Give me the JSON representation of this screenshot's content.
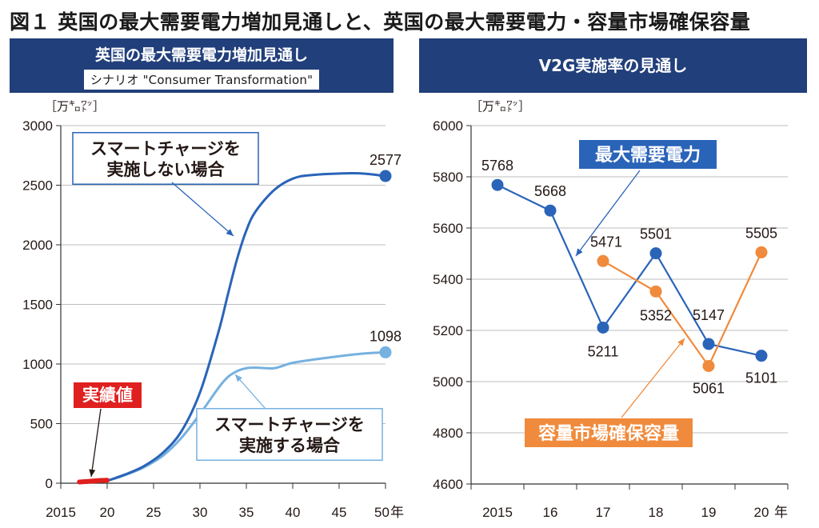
{
  "figure_title": "図１ 英国の最大需要電力増加見通しと、英国の最大需要電力・容量市場確保容量",
  "colors": {
    "header_bg": "#213f7a",
    "dark_blue": "#2a64b8",
    "light_blue": "#76b1df",
    "orange": "#f08a3c",
    "red": "#e01f1f"
  },
  "chart_data": [
    {
      "type": "line",
      "title": "英国の最大需要電力増加見通し",
      "subtitle": "シナリオ \"Consumer Transformation\"",
      "ylabel": "［万㌔㍗］",
      "ylim": [
        0,
        3000
      ],
      "yticks": [
        "0",
        "500",
        "1000",
        "1500",
        "2000",
        "2500",
        "3000"
      ],
      "xlim": [
        2015,
        2050
      ],
      "xticks": [
        "2015",
        "20",
        "25",
        "30",
        "35",
        "40",
        "45",
        "50"
      ],
      "x_unit": "年",
      "series": [
        {
          "name": "スマートチャージを実施しない場合",
          "color": "#2a64b8",
          "points": [
            [
              2020,
              20
            ],
            [
              2022,
              75
            ],
            [
              2024,
              145
            ],
            [
              2026,
              255
            ],
            [
              2028,
              435
            ],
            [
              2030,
              760
            ],
            [
              2032,
              1270
            ],
            [
              2033,
              1580
            ],
            [
              2034,
              1880
            ],
            [
              2035,
              2120
            ],
            [
              2036,
              2280
            ],
            [
              2038,
              2460
            ],
            [
              2040,
              2555
            ],
            [
              2042,
              2585
            ],
            [
              2046,
              2600
            ],
            [
              2048,
              2595
            ],
            [
              2050,
              2577
            ]
          ],
          "end_label": "2577"
        },
        {
          "name": "スマートチャージを実施する場合",
          "color": "#76b1df",
          "points": [
            [
              2020,
              20
            ],
            [
              2022,
              70
            ],
            [
              2024,
              135
            ],
            [
              2026,
              230
            ],
            [
              2028,
              380
            ],
            [
              2030,
              580
            ],
            [
              2032,
              800
            ],
            [
              2033,
              890
            ],
            [
              2034,
              940
            ],
            [
              2035,
              965
            ],
            [
              2036,
              970
            ],
            [
              2038,
              965
            ],
            [
              2040,
              1010
            ],
            [
              2043,
              1045
            ],
            [
              2046,
              1075
            ],
            [
              2048,
              1090
            ],
            [
              2050,
              1098
            ]
          ],
          "end_label": "1098"
        },
        {
          "name": "実績値",
          "color": "#e01f1f",
          "points": [
            [
              2017,
              10
            ],
            [
              2018,
              15
            ],
            [
              2019,
              22
            ],
            [
              2020,
              25
            ]
          ]
        }
      ]
    },
    {
      "type": "line",
      "title": "V2G実施率の見通し",
      "ylabel": "［万㌔㍗］",
      "ylim": [
        4600,
        6000
      ],
      "yticks": [
        "4600",
        "4800",
        "5000",
        "5200",
        "5400",
        "5600",
        "5800",
        "6000"
      ],
      "categories": [
        "2015",
        "16",
        "17",
        "18",
        "19",
        "20"
      ],
      "x_unit": "年",
      "series": [
        {
          "name": "最大需要電力",
          "color": "#2a64b8",
          "values": [
            5768,
            5668,
            5211,
            5501,
            5147,
            5101
          ],
          "labels": [
            "5768",
            "5668",
            "5211",
            "5501",
            "5147",
            "5101"
          ]
        },
        {
          "name": "容量市場確保容量",
          "color": "#f08a3c",
          "values": [
            null,
            null,
            5471,
            5352,
            5061,
            5505
          ],
          "labels": [
            "",
            "",
            "5471",
            "5352",
            "5061",
            "5505"
          ]
        }
      ]
    }
  ]
}
